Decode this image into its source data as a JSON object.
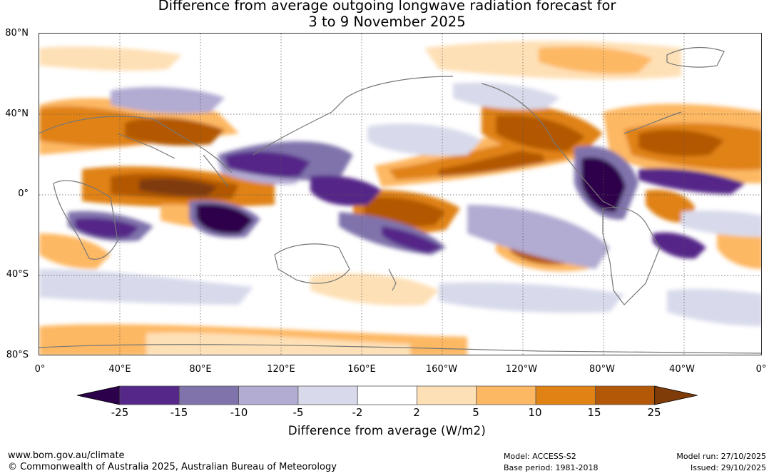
{
  "title": {
    "line1": "Difference from average outgoing longwave radiation forecast for",
    "line2": "3 to 9 November 2025"
  },
  "map": {
    "lat_labels": [
      "80°N",
      "40°N",
      "0°",
      "40°S",
      "80°S"
    ],
    "lon_labels": [
      "0°",
      "40°E",
      "80°E",
      "120°E",
      "160°E",
      "160°W",
      "120°W",
      "80°W",
      "40°W",
      "0°"
    ]
  },
  "legend": {
    "bin_edges": [
      "-25",
      "-15",
      "-10",
      "-5",
      "-2",
      "2",
      "5",
      "10",
      "15",
      "25"
    ],
    "colors": [
      "#2d004b",
      "#542788",
      "#8073ac",
      "#b2abd2",
      "#d8daeb",
      "#ffffff",
      "#fee0b6",
      "#fdb863",
      "#e08214",
      "#b35806",
      "#7f3b08"
    ],
    "units_label": "Difference from average (W/m2)"
  },
  "footer": {
    "website": "www.bom.gov.au/climate",
    "copyright": "© Commonwealth of Australia 2025, Australian Bureau of Meteorology",
    "model": "Model: ACCESS-S2",
    "base_period": "Base period: 1981-2018",
    "model_run": "Model run: 27/10/2025",
    "issued": "Issued: 29/10/2025"
  }
}
